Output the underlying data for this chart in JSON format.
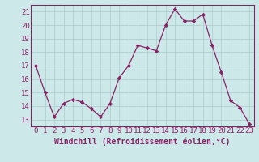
{
  "x": [
    0,
    1,
    2,
    3,
    4,
    5,
    6,
    7,
    8,
    9,
    10,
    11,
    12,
    13,
    14,
    15,
    16,
    17,
    18,
    19,
    20,
    21,
    22,
    23
  ],
  "y": [
    17.0,
    15.0,
    13.2,
    14.2,
    14.5,
    14.3,
    13.8,
    13.2,
    14.2,
    16.1,
    17.0,
    18.5,
    18.3,
    18.1,
    20.0,
    21.2,
    20.3,
    20.3,
    20.8,
    18.5,
    16.5,
    14.4,
    13.9,
    12.7
  ],
  "line_color": "#882266",
  "marker": "D",
  "marker_size": 2.2,
  "bg_color": "#cce8e8",
  "grid_color": "#aacccc",
  "xlabel": "Windchill (Refroidissement éolien,°C)",
  "ylim": [
    12.5,
    21.5
  ],
  "xlim": [
    -0.5,
    23.5
  ],
  "yticks": [
    13,
    14,
    15,
    16,
    17,
    18,
    19,
    20,
    21
  ],
  "xticks": [
    0,
    1,
    2,
    3,
    4,
    5,
    6,
    7,
    8,
    9,
    10,
    11,
    12,
    13,
    14,
    15,
    16,
    17,
    18,
    19,
    20,
    21,
    22,
    23
  ],
  "tick_label_fontsize": 6.5,
  "xlabel_fontsize": 7.0,
  "line_width": 0.9
}
